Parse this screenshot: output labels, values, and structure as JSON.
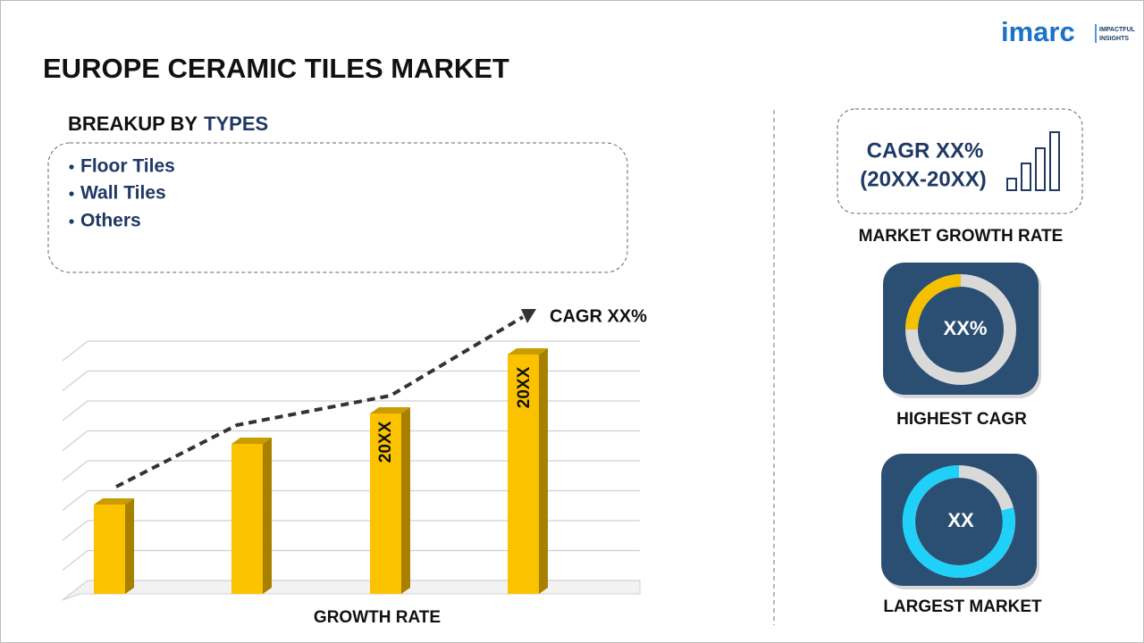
{
  "header": {
    "title": "EUROPE CERAMIC TILES MARKET",
    "logo": "imarc",
    "logo_tagline": [
      "IMPACTFUL",
      "INSIGHTS"
    ]
  },
  "breakup": {
    "heading_prefix": "BREAKUP BY",
    "heading_highlight": "TYPES",
    "items": [
      "Floor Tiles",
      "Wall Tiles",
      "Others"
    ]
  },
  "growth_chart": {
    "trend_label": "CAGR XX%",
    "bar_labels": [
      "20XX",
      "20XX"
    ],
    "caption": "GROWTH RATE"
  },
  "stats": [
    {
      "value": "CAGR XX%",
      "period": "(20XX-20XX)",
      "caption": "MARKET GROWTH RATE"
    },
    {
      "value": "XX%",
      "caption": "HIGHEST CAGR"
    },
    {
      "value": "XX",
      "caption": "LARGEST MARKET"
    }
  ]
}
